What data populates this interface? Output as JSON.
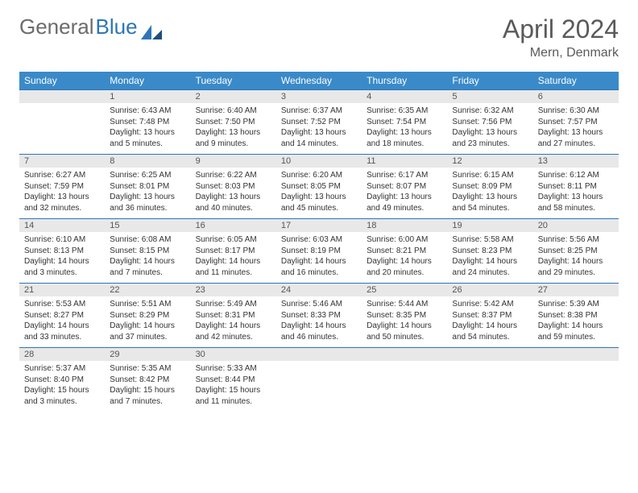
{
  "brand": {
    "part1": "General",
    "part2": "Blue"
  },
  "title": "April 2024",
  "location": "Mern, Denmark",
  "colors": {
    "header_bg": "#3a8ac9",
    "header_text": "#ffffff",
    "week_border": "#2e75b6",
    "daynum_bg": "#e8e8e8",
    "text": "#333333",
    "title_text": "#5a5a5a",
    "logo_gray": "#6b6b6b",
    "logo_blue": "#2e75b6"
  },
  "day_names": [
    "Sunday",
    "Monday",
    "Tuesday",
    "Wednesday",
    "Thursday",
    "Friday",
    "Saturday"
  ],
  "weeks": [
    [
      null,
      {
        "n": "1",
        "sr": "6:43 AM",
        "ss": "7:48 PM",
        "dl": "13 hours and 5 minutes."
      },
      {
        "n": "2",
        "sr": "6:40 AM",
        "ss": "7:50 PM",
        "dl": "13 hours and 9 minutes."
      },
      {
        "n": "3",
        "sr": "6:37 AM",
        "ss": "7:52 PM",
        "dl": "13 hours and 14 minutes."
      },
      {
        "n": "4",
        "sr": "6:35 AM",
        "ss": "7:54 PM",
        "dl": "13 hours and 18 minutes."
      },
      {
        "n": "5",
        "sr": "6:32 AM",
        "ss": "7:56 PM",
        "dl": "13 hours and 23 minutes."
      },
      {
        "n": "6",
        "sr": "6:30 AM",
        "ss": "7:57 PM",
        "dl": "13 hours and 27 minutes."
      }
    ],
    [
      {
        "n": "7",
        "sr": "6:27 AM",
        "ss": "7:59 PM",
        "dl": "13 hours and 32 minutes."
      },
      {
        "n": "8",
        "sr": "6:25 AM",
        "ss": "8:01 PM",
        "dl": "13 hours and 36 minutes."
      },
      {
        "n": "9",
        "sr": "6:22 AM",
        "ss": "8:03 PM",
        "dl": "13 hours and 40 minutes."
      },
      {
        "n": "10",
        "sr": "6:20 AM",
        "ss": "8:05 PM",
        "dl": "13 hours and 45 minutes."
      },
      {
        "n": "11",
        "sr": "6:17 AM",
        "ss": "8:07 PM",
        "dl": "13 hours and 49 minutes."
      },
      {
        "n": "12",
        "sr": "6:15 AM",
        "ss": "8:09 PM",
        "dl": "13 hours and 54 minutes."
      },
      {
        "n": "13",
        "sr": "6:12 AM",
        "ss": "8:11 PM",
        "dl": "13 hours and 58 minutes."
      }
    ],
    [
      {
        "n": "14",
        "sr": "6:10 AM",
        "ss": "8:13 PM",
        "dl": "14 hours and 3 minutes."
      },
      {
        "n": "15",
        "sr": "6:08 AM",
        "ss": "8:15 PM",
        "dl": "14 hours and 7 minutes."
      },
      {
        "n": "16",
        "sr": "6:05 AM",
        "ss": "8:17 PM",
        "dl": "14 hours and 11 minutes."
      },
      {
        "n": "17",
        "sr": "6:03 AM",
        "ss": "8:19 PM",
        "dl": "14 hours and 16 minutes."
      },
      {
        "n": "18",
        "sr": "6:00 AM",
        "ss": "8:21 PM",
        "dl": "14 hours and 20 minutes."
      },
      {
        "n": "19",
        "sr": "5:58 AM",
        "ss": "8:23 PM",
        "dl": "14 hours and 24 minutes."
      },
      {
        "n": "20",
        "sr": "5:56 AM",
        "ss": "8:25 PM",
        "dl": "14 hours and 29 minutes."
      }
    ],
    [
      {
        "n": "21",
        "sr": "5:53 AM",
        "ss": "8:27 PM",
        "dl": "14 hours and 33 minutes."
      },
      {
        "n": "22",
        "sr": "5:51 AM",
        "ss": "8:29 PM",
        "dl": "14 hours and 37 minutes."
      },
      {
        "n": "23",
        "sr": "5:49 AM",
        "ss": "8:31 PM",
        "dl": "14 hours and 42 minutes."
      },
      {
        "n": "24",
        "sr": "5:46 AM",
        "ss": "8:33 PM",
        "dl": "14 hours and 46 minutes."
      },
      {
        "n": "25",
        "sr": "5:44 AM",
        "ss": "8:35 PM",
        "dl": "14 hours and 50 minutes."
      },
      {
        "n": "26",
        "sr": "5:42 AM",
        "ss": "8:37 PM",
        "dl": "14 hours and 54 minutes."
      },
      {
        "n": "27",
        "sr": "5:39 AM",
        "ss": "8:38 PM",
        "dl": "14 hours and 59 minutes."
      }
    ],
    [
      {
        "n": "28",
        "sr": "5:37 AM",
        "ss": "8:40 PM",
        "dl": "15 hours and 3 minutes."
      },
      {
        "n": "29",
        "sr": "5:35 AM",
        "ss": "8:42 PM",
        "dl": "15 hours and 7 minutes."
      },
      {
        "n": "30",
        "sr": "5:33 AM",
        "ss": "8:44 PM",
        "dl": "15 hours and 11 minutes."
      },
      null,
      null,
      null,
      null
    ]
  ],
  "labels": {
    "sunrise": "Sunrise:",
    "sunset": "Sunset:",
    "daylight": "Daylight:"
  }
}
